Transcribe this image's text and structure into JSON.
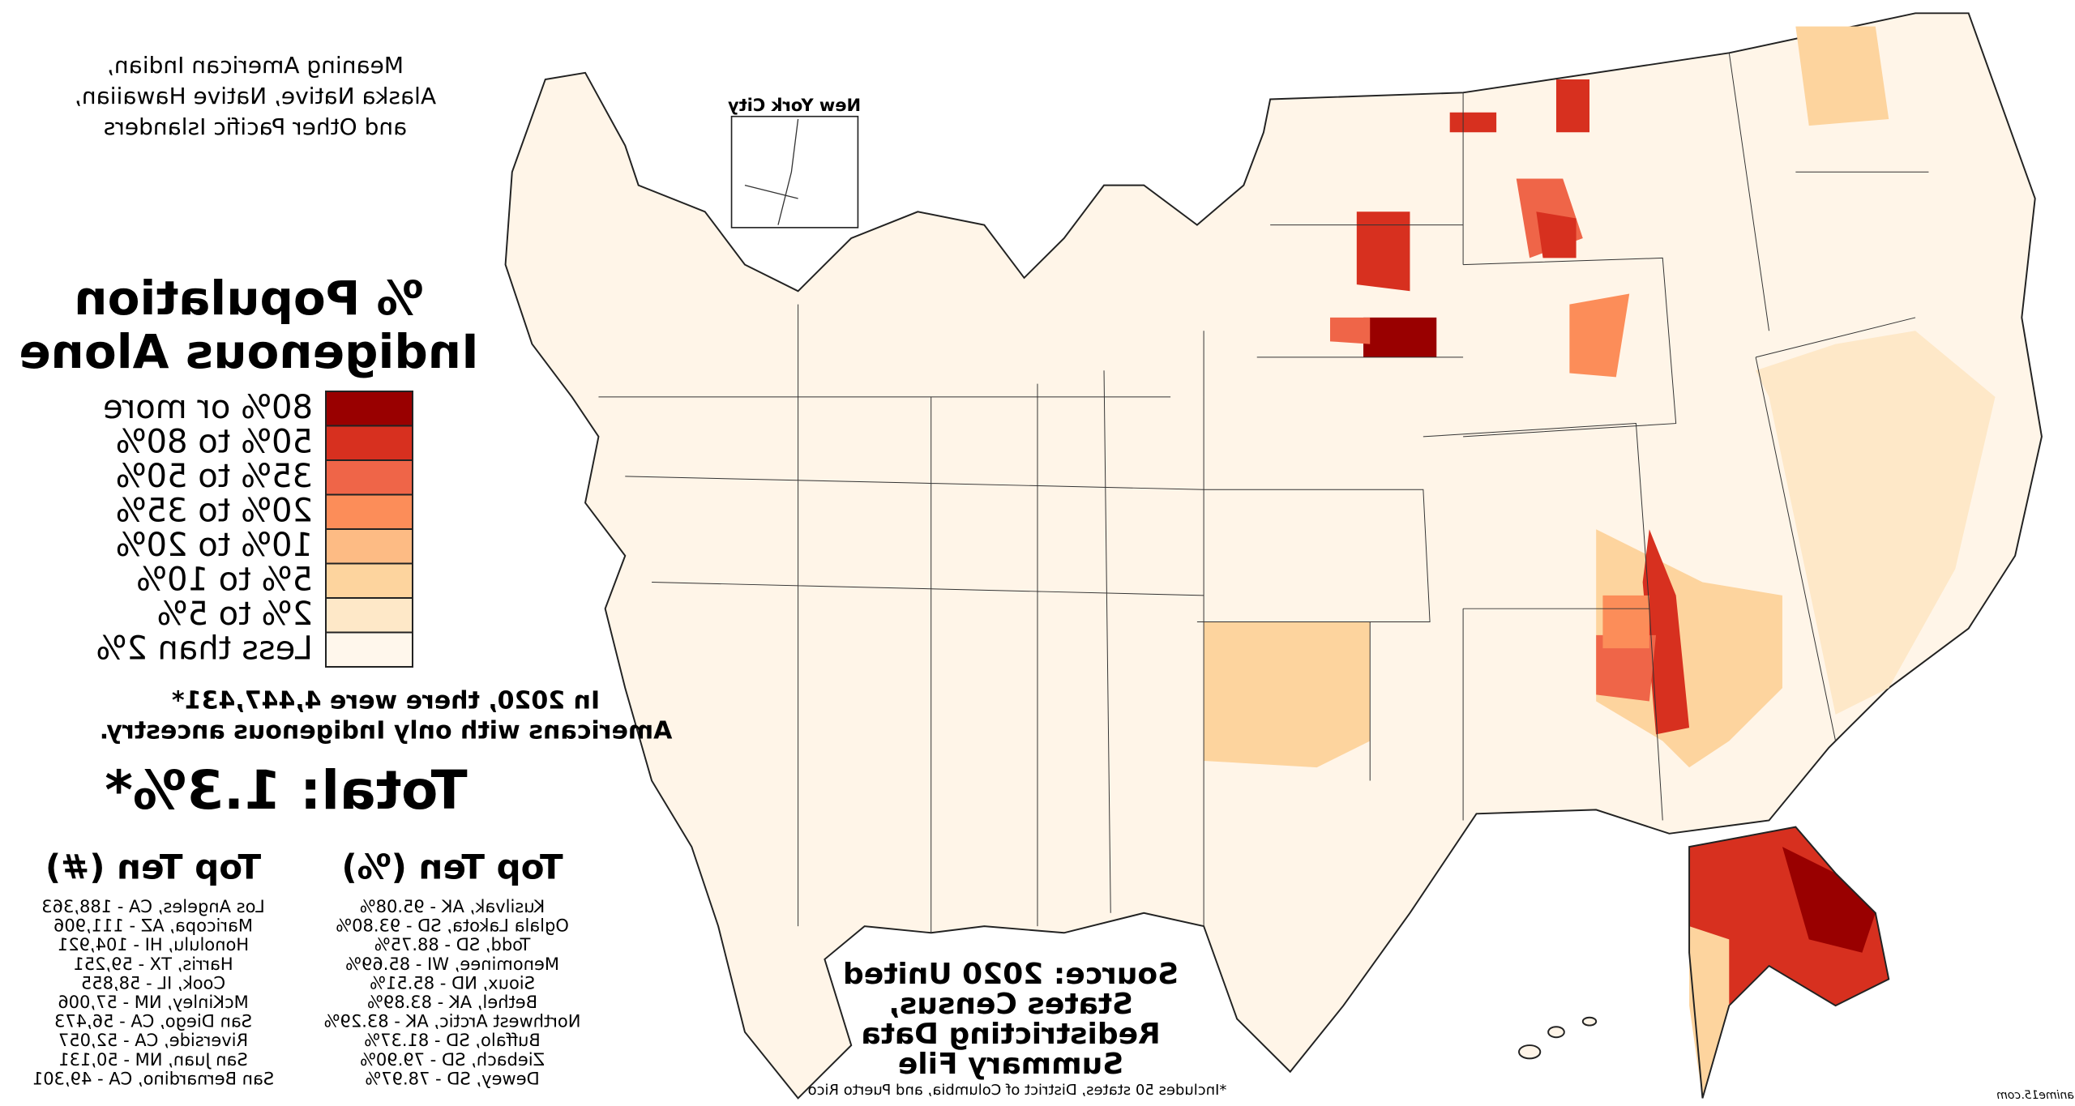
{
  "note": [
    "Meaning American Indian,",
    "Alaska Native, Native Hawaiian,",
    "and Other Pacific Islanders"
  ],
  "title": [
    "% Population",
    "Indigenous Alone"
  ],
  "legend": [
    {
      "label": "80% or more",
      "color": "#990000"
    },
    {
      "label": "50% to 80%",
      "color": "#d7301f"
    },
    {
      "label": "35% to 50%",
      "color": "#ef6548"
    },
    {
      "label": "20% to 35%",
      "color": "#fc8d59"
    },
    {
      "label": "10% to 20%",
      "color": "#fdbb84"
    },
    {
      "label": "5% to 10%",
      "color": "#fdd49e"
    },
    {
      "label": "2% to 5%",
      "color": "#fee8c8"
    },
    {
      "label": "Less than 2%",
      "color": "#fff7ec"
    }
  ],
  "statement": [
    "In 2020, there were 4,447,431*",
    "Americans with only Indigenous ancestry."
  ],
  "total": "Total: 1.3%*",
  "top_pct": {
    "title": "Top Ten (%)",
    "items": [
      "Kusilvak, AK - 95.08%",
      "Oglala Lakota, SD - 93.80%",
      "Todd, SD - 88.75%",
      "Menominee, WI - 85.69%",
      "Sioux, ND - 85.51%",
      "Bethel, AK - 83.89%",
      "Northwest Arctic, AK - 83.29%",
      "Buffalo, SD - 81.37%",
      "Ziebach, SD - 79.90%",
      "Dewey, SD - 78.97%"
    ]
  },
  "top_num": {
    "title": "Top Ten (#)",
    "items": [
      "Los Angeles, CA - 188,363",
      "Maricopa, AZ - 111,906",
      "Honolulu, HI - 104,921",
      "Harris, TX - 59,251",
      "Cook, IL - 58,855",
      "McKinley, NM - 57,006",
      "San Diego, CA - 56,473",
      "Riverside, CA - 52,057",
      "San Juan, NM - 50,131",
      "San Bernardino, CA - 49,301"
    ]
  },
  "source": [
    "Source: 2020 United",
    "States Census,",
    "Redistricting Data",
    "Summary File"
  ],
  "footnote": "*Includes 50 states, District of Columbia, and Puerto Rico",
  "inset_label": "New York City",
  "watermark": "anime15.com"
}
